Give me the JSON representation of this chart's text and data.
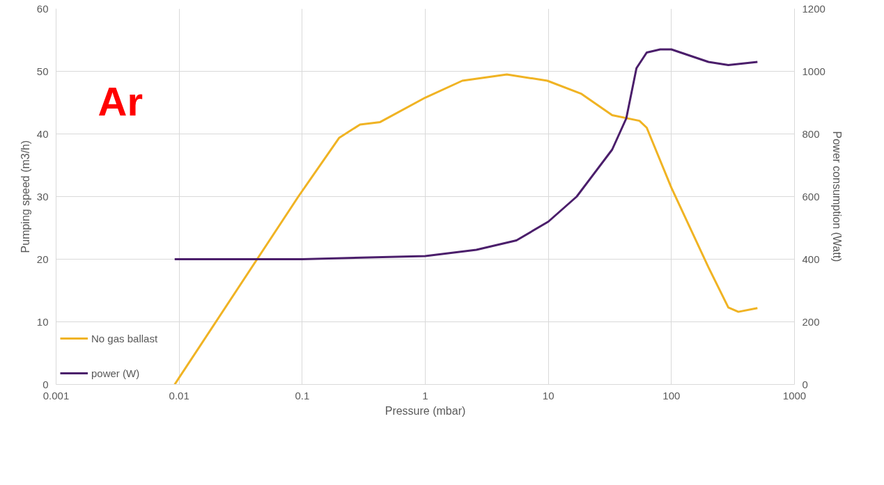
{
  "chart_data": {
    "type": "line",
    "xlabel": "Pressure (mbar)",
    "ylabel": "Pumping speed (m3/h)",
    "y2label": "Power consumption (Watt)",
    "annotations": [
      "Ar"
    ],
    "log": "x",
    "grid": true,
    "legend": "bottom",
    "marker": "none",
    "line_style": "solid",
    "xlim": [
      0.001,
      1000
    ],
    "xticks": [
      {
        "value": 0.001,
        "label": "0.001"
      },
      {
        "value": 0.01,
        "label": "0.01"
      },
      {
        "value": 0.1,
        "label": "0.1"
      },
      1,
      10,
      100,
      1000
    ],
    "ylim": [
      0,
      60
    ],
    "yticks": [
      0,
      10,
      20,
      30,
      40,
      50,
      60
    ],
    "y2lim": [
      0,
      1200
    ],
    "y2ticks": [
      0,
      200,
      400,
      600,
      800,
      1000,
      1200
    ],
    "series": [
      {
        "name": "No gas ballast",
        "color": "#f0b323",
        "x": [
          0.0092,
          0.093,
          0.2,
          0.295,
          0.43,
          1,
          2,
          4.6,
          9.8,
          18.6,
          33,
          55,
          63,
          100,
          200,
          290,
          350,
          500
        ],
        "values": [
          0,
          30,
          39.4,
          41.5,
          41.9,
          45.8,
          48.5,
          49.5,
          48.5,
          46.4,
          43,
          42.1,
          41,
          31.4,
          18.7,
          12.3,
          11.6,
          12.2
        ]
      },
      {
        "name": "power (W)",
        "color": "#4b1e6b",
        "axis": "y2",
        "x": [
          0.0092,
          0.1,
          1,
          2.6,
          5.5,
          10,
          17,
          33,
          43,
          52,
          63,
          81,
          100,
          200,
          290,
          500
        ],
        "values": [
          400,
          400,
          410,
          430,
          460,
          520,
          600,
          750,
          850,
          1010,
          1060,
          1070,
          1070,
          1030,
          1020,
          1030
        ]
      }
    ]
  }
}
